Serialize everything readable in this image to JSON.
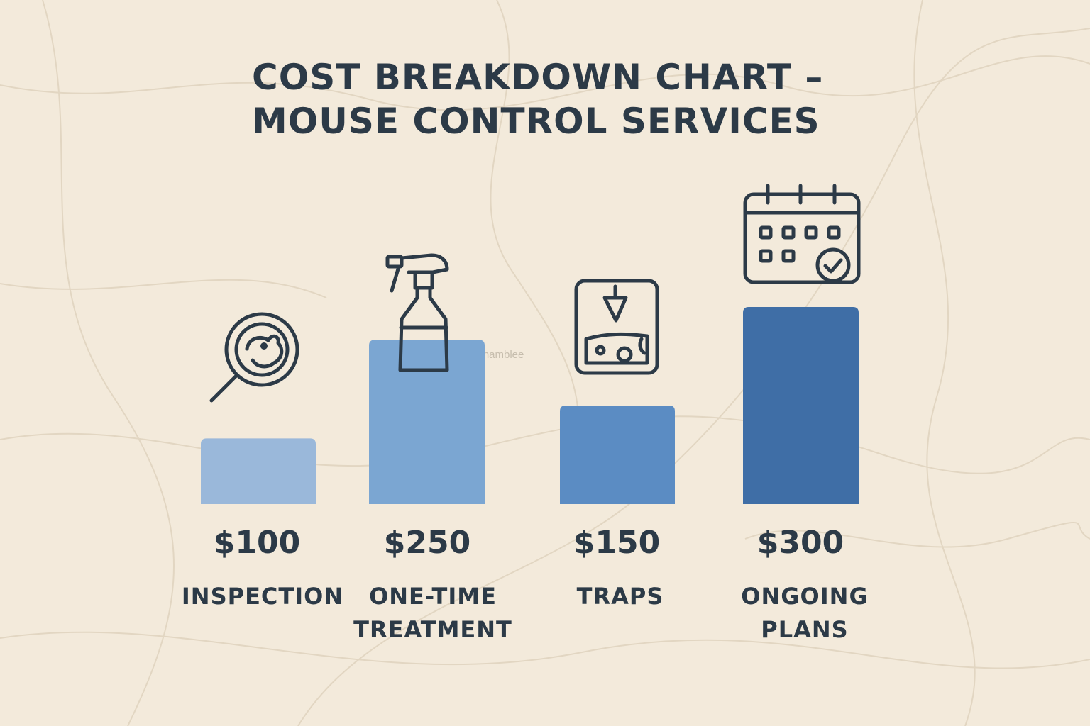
{
  "title": {
    "line1": "COST BREAKDOWN CHART –",
    "line2": "MOUSE CONTROL SERVICES"
  },
  "watermark": "Chamblee",
  "chart_data": {
    "type": "bar",
    "categories": [
      [
        "INSPECTION"
      ],
      [
        "ONE-TIME",
        "TREATMENT"
      ],
      [
        "TRAPS"
      ],
      [
        "ONGOING",
        "PLANS"
      ]
    ],
    "values": [
      100,
      250,
      150,
      300
    ],
    "value_labels": [
      "$100",
      "$250",
      "$150",
      "$300"
    ],
    "icons": [
      "magnifier-mouse-icon",
      "spray-bottle-icon",
      "mouse-trap-cheese-icon",
      "calendar-check-icon"
    ],
    "colors": [
      "#9ab8da",
      "#7ba6d2",
      "#5b8cc3",
      "#3f6ea6"
    ],
    "ylim": [
      0,
      300
    ]
  }
}
